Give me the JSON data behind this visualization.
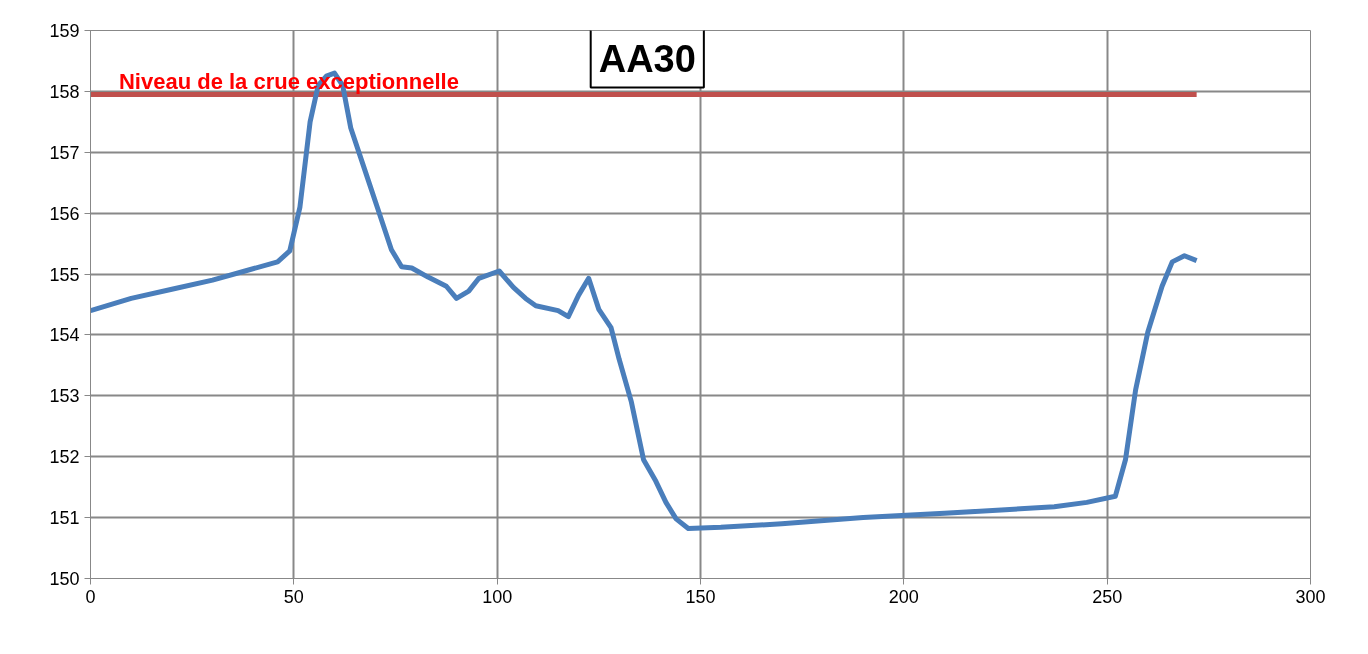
{
  "chart_data": {
    "type": "line",
    "title": "AA30",
    "x": [
      0,
      10,
      20,
      30,
      38,
      46,
      49,
      51.5,
      54,
      56,
      58,
      60,
      62,
      64,
      68,
      70.5,
      74,
      76.5,
      79,
      83,
      87.5,
      90,
      93,
      95.5,
      100.5,
      104,
      107,
      109.5,
      115,
      117.5,
      120,
      122.5,
      125,
      128,
      130,
      133,
      136,
      139,
      141.5,
      144,
      147,
      155,
      170,
      190,
      210,
      225,
      237,
      245,
      252,
      254.5,
      257,
      260,
      263.5,
      266,
      269,
      272
    ],
    "series": [
      {
        "color": "#4a7ebb",
        "values": [
          154.4,
          154.6,
          154.75,
          154.9,
          155.05,
          155.2,
          155.38,
          156.1,
          157.5,
          158.1,
          158.25,
          158.3,
          158.1,
          157.4,
          156.6,
          156.1,
          155.4,
          155.12,
          155.1,
          154.95,
          154.8,
          154.6,
          154.72,
          154.93,
          155.05,
          154.78,
          154.6,
          154.48,
          154.4,
          154.3,
          154.65,
          154.93,
          154.42,
          154.12,
          153.6,
          152.9,
          151.95,
          151.6,
          151.25,
          150.98,
          150.82,
          150.84,
          150.9,
          151.0,
          151.07,
          151.13,
          151.18,
          151.25,
          151.35,
          151.95,
          153.1,
          154.05,
          154.8,
          155.2,
          155.3,
          155.22
        ]
      }
    ],
    "ref_lines": [
      {
        "axis": "y",
        "value": 157.95,
        "label": "Niveau de la crue exceptionnelle",
        "color": "#c0504d"
      }
    ],
    "xlim": [
      0,
      300
    ],
    "xticks": [
      0,
      50,
      100,
      150,
      200,
      250,
      300
    ],
    "ylim": [
      150,
      159
    ],
    "yticks": [
      150,
      151,
      152,
      153,
      154,
      155,
      156,
      157,
      158,
      159
    ],
    "grid": true,
    "marker": "none",
    "line_style": "solid"
  }
}
